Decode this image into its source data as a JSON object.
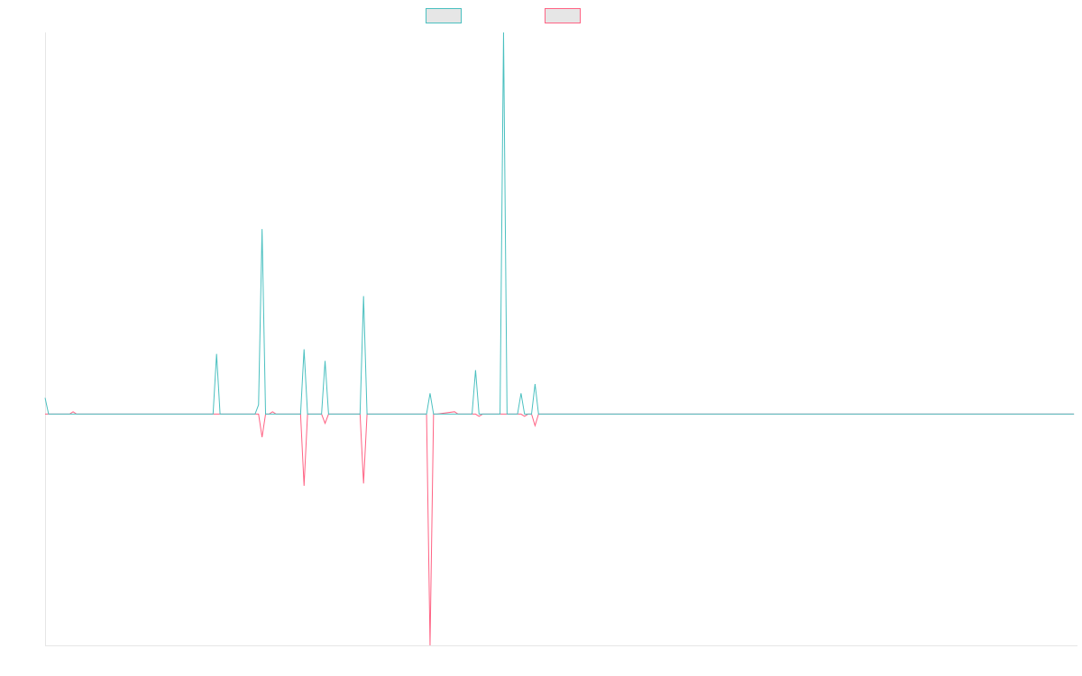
{
  "chart_data": {
    "type": "line",
    "title": "",
    "xlabel": "",
    "ylabel": "",
    "legend": {
      "position": "top-center",
      "labels_printed": false
    },
    "grid": false,
    "xlim": [
      0,
      295
    ],
    "ylim": [
      -100,
      165
    ],
    "colors": {
      "series_0": "#4bc0c0",
      "series_1": "#ff6384",
      "axis": "#e6e6e6",
      "swatch_fill": "#e6e6e6"
    },
    "x": [
      0,
      1,
      7,
      8,
      9,
      20,
      21,
      22,
      48,
      49,
      50,
      51,
      60,
      61,
      62,
      63,
      64,
      65,
      66,
      67,
      73,
      74,
      75,
      76,
      79,
      80,
      81,
      82,
      90,
      91,
      92,
      93,
      109,
      110,
      111,
      112,
      117,
      118,
      119,
      120,
      122,
      123,
      124,
      125,
      130,
      131,
      132,
      135,
      136,
      137,
      138,
      139,
      140,
      141,
      142,
      145,
      146,
      147,
      294
    ],
    "series": [
      {
        "values": [
          7,
          0,
          0,
          0,
          0,
          0,
          0,
          0,
          0,
          26,
          0,
          0,
          0,
          4,
          80,
          0,
          0,
          0,
          0,
          0,
          0,
          28,
          0,
          0,
          0,
          23,
          0,
          0,
          0,
          51,
          0,
          0,
          0,
          9,
          0,
          0,
          0,
          0,
          0,
          0,
          0,
          19,
          0,
          0,
          0,
          165,
          0,
          0,
          9,
          0,
          0,
          0,
          13,
          0,
          0,
          0,
          0,
          0,
          0
        ]
      },
      {
        "values": [
          0,
          0,
          0,
          1,
          0,
          0,
          0,
          0,
          0,
          0,
          0,
          0,
          0,
          0,
          -10,
          0,
          0,
          1,
          0,
          0,
          0,
          -31,
          0,
          0,
          0,
          -4,
          0,
          0,
          0,
          -30,
          0,
          0,
          0,
          -100,
          0,
          0,
          1,
          0,
          0,
          0,
          0,
          0,
          -1,
          0,
          0,
          0,
          0,
          0,
          0,
          -1,
          0,
          0,
          -5,
          0,
          0,
          0,
          0,
          0,
          0
        ]
      }
    ]
  }
}
